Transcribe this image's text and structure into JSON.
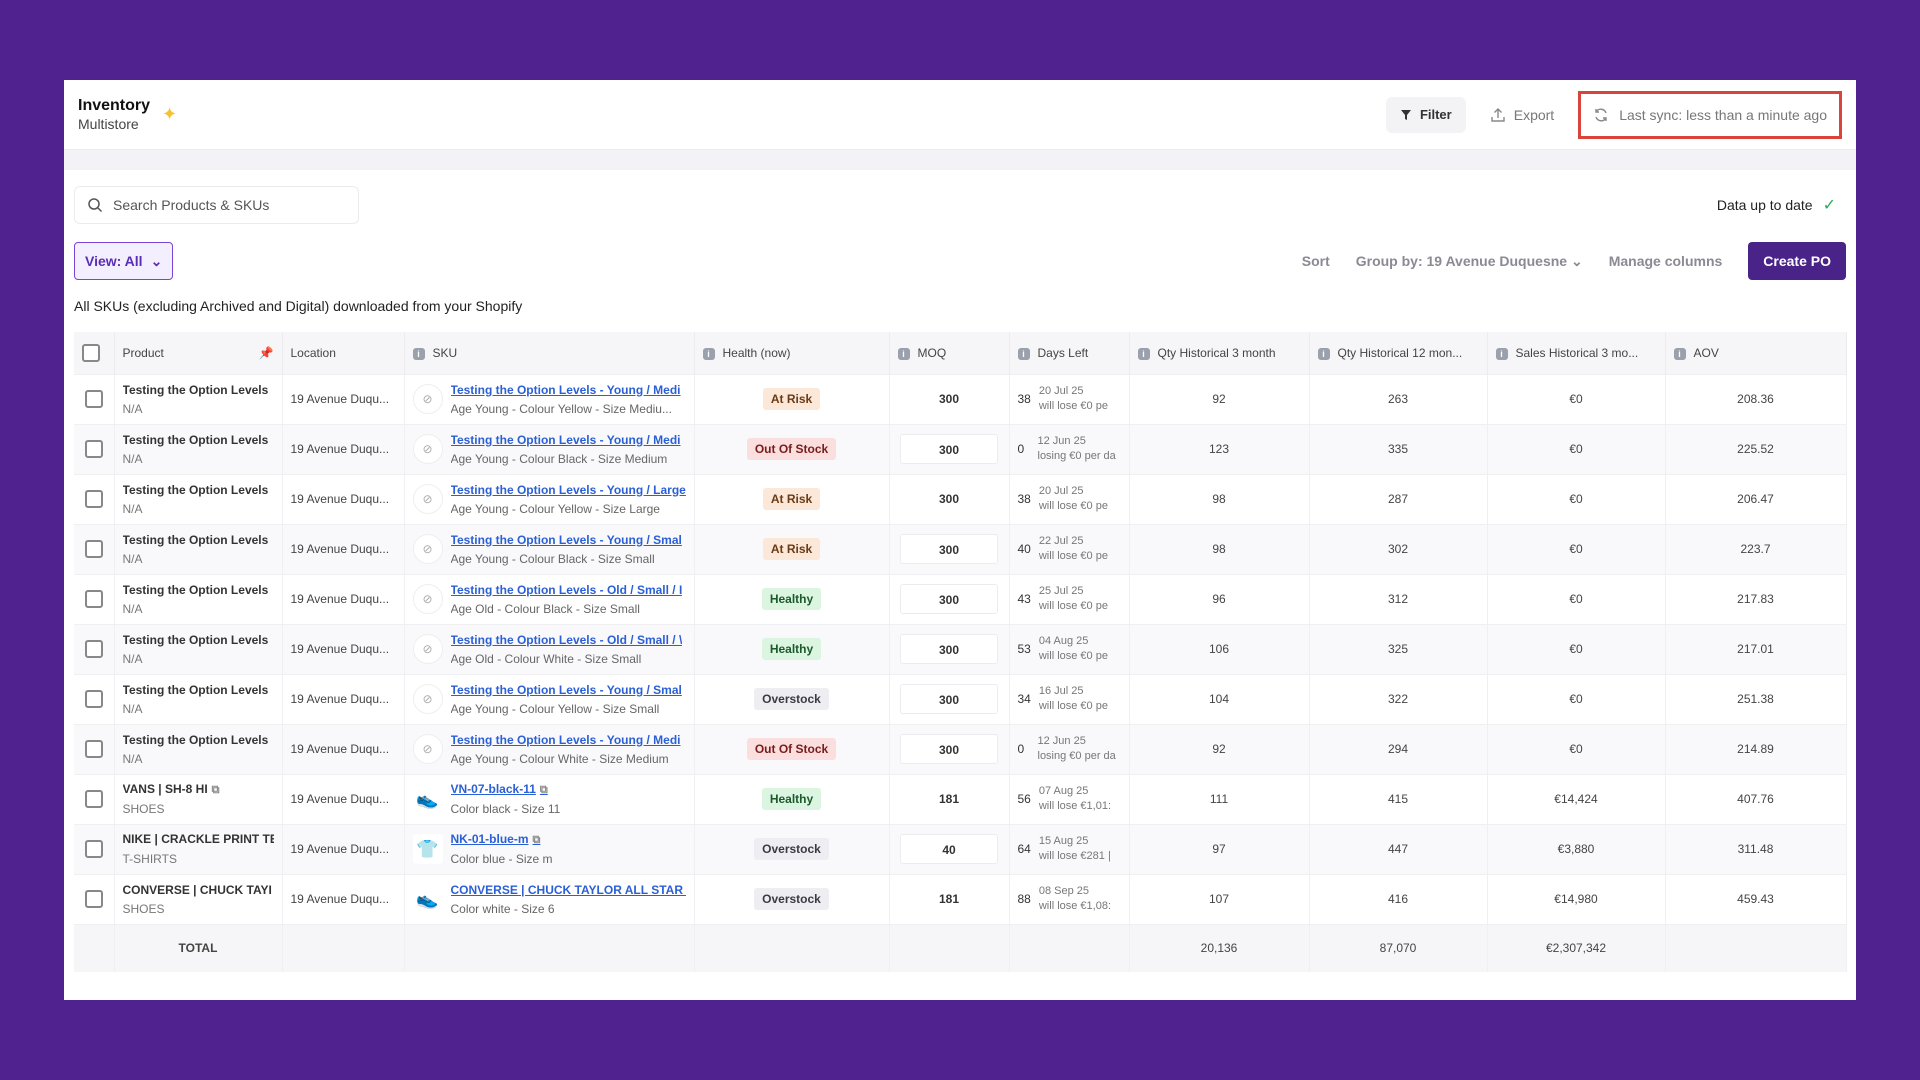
{
  "header": {
    "title": "Inventory",
    "subtitle": "Multistore",
    "filter_label": "Filter",
    "export_label": "Export",
    "sync_label": "Last sync: less than a minute ago"
  },
  "toolbar": {
    "search_placeholder": "Search Products & SKUs",
    "data_status": "Data up to date",
    "view_label": "View: All",
    "sort_label": "Sort",
    "group_label": "Group by: 19 Avenue Duquesne",
    "manage_columns_label": "Manage columns",
    "create_po_label": "Create PO",
    "description": "All SKUs (excluding Archived and Digital) downloaded from your Shopify"
  },
  "table": {
    "columns": {
      "product": "Product",
      "location": "Location",
      "sku": "SKU",
      "health": "Health (now)",
      "moq": "MOQ",
      "days_left": "Days Left",
      "qty3": "Qty Historical 3 month",
      "qty12": "Qty Historical 12 mon...",
      "sales3": "Sales Historical 3 mo...",
      "aov": "AOV"
    },
    "rows": [
      {
        "product": "Testing the Option Levels",
        "product_sub": "N/A",
        "location": "19 Avenue Duqu...",
        "sku": "Testing the Option Levels - Young / Medi",
        "sku_sub": "Age Young - Colour Yellow - Size Mediu...",
        "health": "At Risk",
        "moq": "300",
        "days": "38",
        "days_date": "20 Jul 25",
        "days_note": "will lose €0 pe",
        "qty3": "92",
        "qty12": "263",
        "sales3": "€0",
        "aov": "208.36"
      },
      {
        "product": "Testing the Option Levels",
        "product_sub": "N/A",
        "location": "19 Avenue Duqu...",
        "sku": "Testing the Option Levels - Young / Medi",
        "sku_sub": "Age Young - Colour Black - Size Medium",
        "health": "Out Of Stock",
        "moq": "300",
        "days": "0",
        "days_date": "12 Jun 25",
        "days_note": "losing €0 per da",
        "qty3": "123",
        "qty12": "335",
        "sales3": "€0",
        "aov": "225.52"
      },
      {
        "product": "Testing the Option Levels",
        "product_sub": "N/A",
        "location": "19 Avenue Duqu...",
        "sku": "Testing the Option Levels - Young / Large",
        "sku_sub": "Age Young - Colour Yellow - Size Large",
        "health": "At Risk",
        "moq": "300",
        "days": "38",
        "days_date": "20 Jul 25",
        "days_note": "will lose €0 pe",
        "qty3": "98",
        "qty12": "287",
        "sales3": "€0",
        "aov": "206.47"
      },
      {
        "product": "Testing the Option Levels",
        "product_sub": "N/A",
        "location": "19 Avenue Duqu...",
        "sku": "Testing the Option Levels - Young / Smal",
        "sku_sub": "Age Young - Colour Black - Size Small",
        "health": "At Risk",
        "moq": "300",
        "days": "40",
        "days_date": "22 Jul 25",
        "days_note": "will lose €0 pe",
        "qty3": "98",
        "qty12": "302",
        "sales3": "€0",
        "aov": "223.7"
      },
      {
        "product": "Testing the Option Levels",
        "product_sub": "N/A",
        "location": "19 Avenue Duqu...",
        "sku": "Testing the Option Levels - Old / Small / I",
        "sku_sub": "Age Old - Colour Black - Size Small",
        "health": "Healthy",
        "moq": "300",
        "days": "43",
        "days_date": "25 Jul 25",
        "days_note": "will lose €0 pe",
        "qty3": "96",
        "qty12": "312",
        "sales3": "€0",
        "aov": "217.83"
      },
      {
        "product": "Testing the Option Levels",
        "product_sub": "N/A",
        "location": "19 Avenue Duqu...",
        "sku": "Testing the Option Levels - Old / Small / \\",
        "sku_sub": "Age Old - Colour White - Size Small",
        "health": "Healthy",
        "moq": "300",
        "days": "53",
        "days_date": "04 Aug 25",
        "days_note": "will lose €0 pe",
        "qty3": "106",
        "qty12": "325",
        "sales3": "€0",
        "aov": "217.01"
      },
      {
        "product": "Testing the Option Levels",
        "product_sub": "N/A",
        "location": "19 Avenue Duqu...",
        "sku": "Testing the Option Levels - Young / Smal",
        "sku_sub": "Age Young - Colour Yellow - Size Small",
        "health": "Overstock",
        "moq": "300",
        "days": "34",
        "days_date": "16 Jul 25",
        "days_note": "will lose €0 pe",
        "qty3": "104",
        "qty12": "322",
        "sales3": "€0",
        "aov": "251.38"
      },
      {
        "product": "Testing the Option Levels",
        "product_sub": "N/A",
        "location": "19 Avenue Duqu...",
        "sku": "Testing the Option Levels - Young / Medi",
        "sku_sub": "Age Young - Colour White - Size Medium",
        "health": "Out Of Stock",
        "moq": "300",
        "days": "0",
        "days_date": "12 Jun 25",
        "days_note": "losing €0 per da",
        "qty3": "92",
        "qty12": "294",
        "sales3": "€0",
        "aov": "214.89"
      },
      {
        "product": "VANS | SH-8 HI",
        "product_sub": "SHOES",
        "location": "19 Avenue Duqu...",
        "sku": "VN-07-black-11",
        "sku_sub": "Color black - Size 11",
        "health": "Healthy",
        "moq": "181",
        "days": "56",
        "days_date": "07 Aug 25",
        "days_note": "will lose €1,01:",
        "qty3": "111",
        "qty12": "415",
        "sales3": "€14,424",
        "aov": "407.76"
      },
      {
        "product": "NIKE | CRACKLE PRINT TE",
        "product_sub": "T-SHIRTS",
        "location": "19 Avenue Duqu...",
        "sku": "NK-01-blue-m",
        "sku_sub": "Color blue - Size m",
        "health": "Overstock",
        "moq": "40",
        "days": "64",
        "days_date": "15 Aug 25",
        "days_note": "will lose €281 |",
        "qty3": "97",
        "qty12": "447",
        "sales3": "€3,880",
        "aov": "311.48"
      },
      {
        "product": "CONVERSE | CHUCK TAYI",
        "product_sub": "SHOES",
        "location": "19 Avenue Duqu...",
        "sku": "CONVERSE | CHUCK TAYLOR ALL STAR I",
        "sku_sub": "Color white - Size 6",
        "health": "Overstock",
        "moq": "181",
        "days": "88",
        "days_date": "08 Sep 25",
        "days_note": "will lose €1,08:",
        "qty3": "107",
        "qty12": "416",
        "sales3": "€14,980",
        "aov": "459.43"
      }
    ],
    "totals": {
      "label": "TOTAL",
      "qty3": "20,136",
      "qty12": "87,070",
      "sales3": "€2,307,342"
    }
  },
  "colors": {
    "background": "#4f2290",
    "accent": "#4a2389",
    "highlight": "#d9443d"
  }
}
